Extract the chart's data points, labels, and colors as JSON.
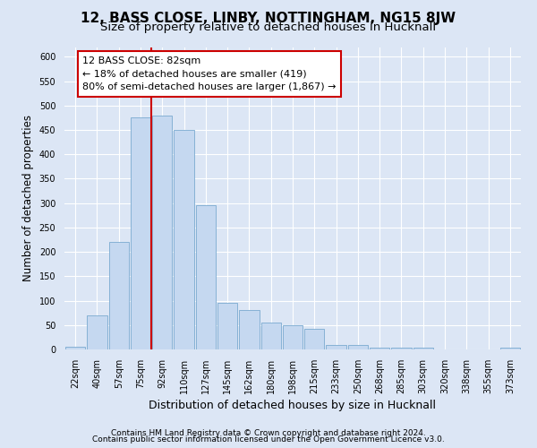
{
  "title": "12, BASS CLOSE, LINBY, NOTTINGHAM, NG15 8JW",
  "subtitle": "Size of property relative to detached houses in Hucknall",
  "xlabel": "Distribution of detached houses by size in Hucknall",
  "ylabel": "Number of detached properties",
  "categories": [
    "22sqm",
    "40sqm",
    "57sqm",
    "75sqm",
    "92sqm",
    "110sqm",
    "127sqm",
    "145sqm",
    "162sqm",
    "180sqm",
    "198sqm",
    "215sqm",
    "233sqm",
    "250sqm",
    "268sqm",
    "285sqm",
    "303sqm",
    "320sqm",
    "338sqm",
    "355sqm",
    "373sqm"
  ],
  "values": [
    5,
    70,
    220,
    475,
    480,
    450,
    295,
    95,
    80,
    55,
    50,
    42,
    10,
    10,
    3,
    3,
    3,
    0,
    0,
    0,
    4
  ],
  "bar_color": "#c5d8f0",
  "bar_edge_color": "#7aaad0",
  "vline_color": "#cc0000",
  "vline_x": 3.5,
  "annotation_text": "12 BASS CLOSE: 82sqm\n← 18% of detached houses are smaller (419)\n80% of semi-detached houses are larger (1,867) →",
  "annotation_box_color": "#ffffff",
  "annotation_box_edge_color": "#cc0000",
  "footer_line1": "Contains HM Land Registry data © Crown copyright and database right 2024.",
  "footer_line2": "Contains public sector information licensed under the Open Government Licence v3.0.",
  "ylim": [
    0,
    620
  ],
  "background_color": "#dce6f5",
  "grid_color": "#ffffff",
  "title_fontsize": 11,
  "subtitle_fontsize": 9.5,
  "ylabel_fontsize": 8.5,
  "xlabel_fontsize": 9,
  "tick_fontsize": 7,
  "annotation_fontsize": 8,
  "footer_fontsize": 6.5
}
